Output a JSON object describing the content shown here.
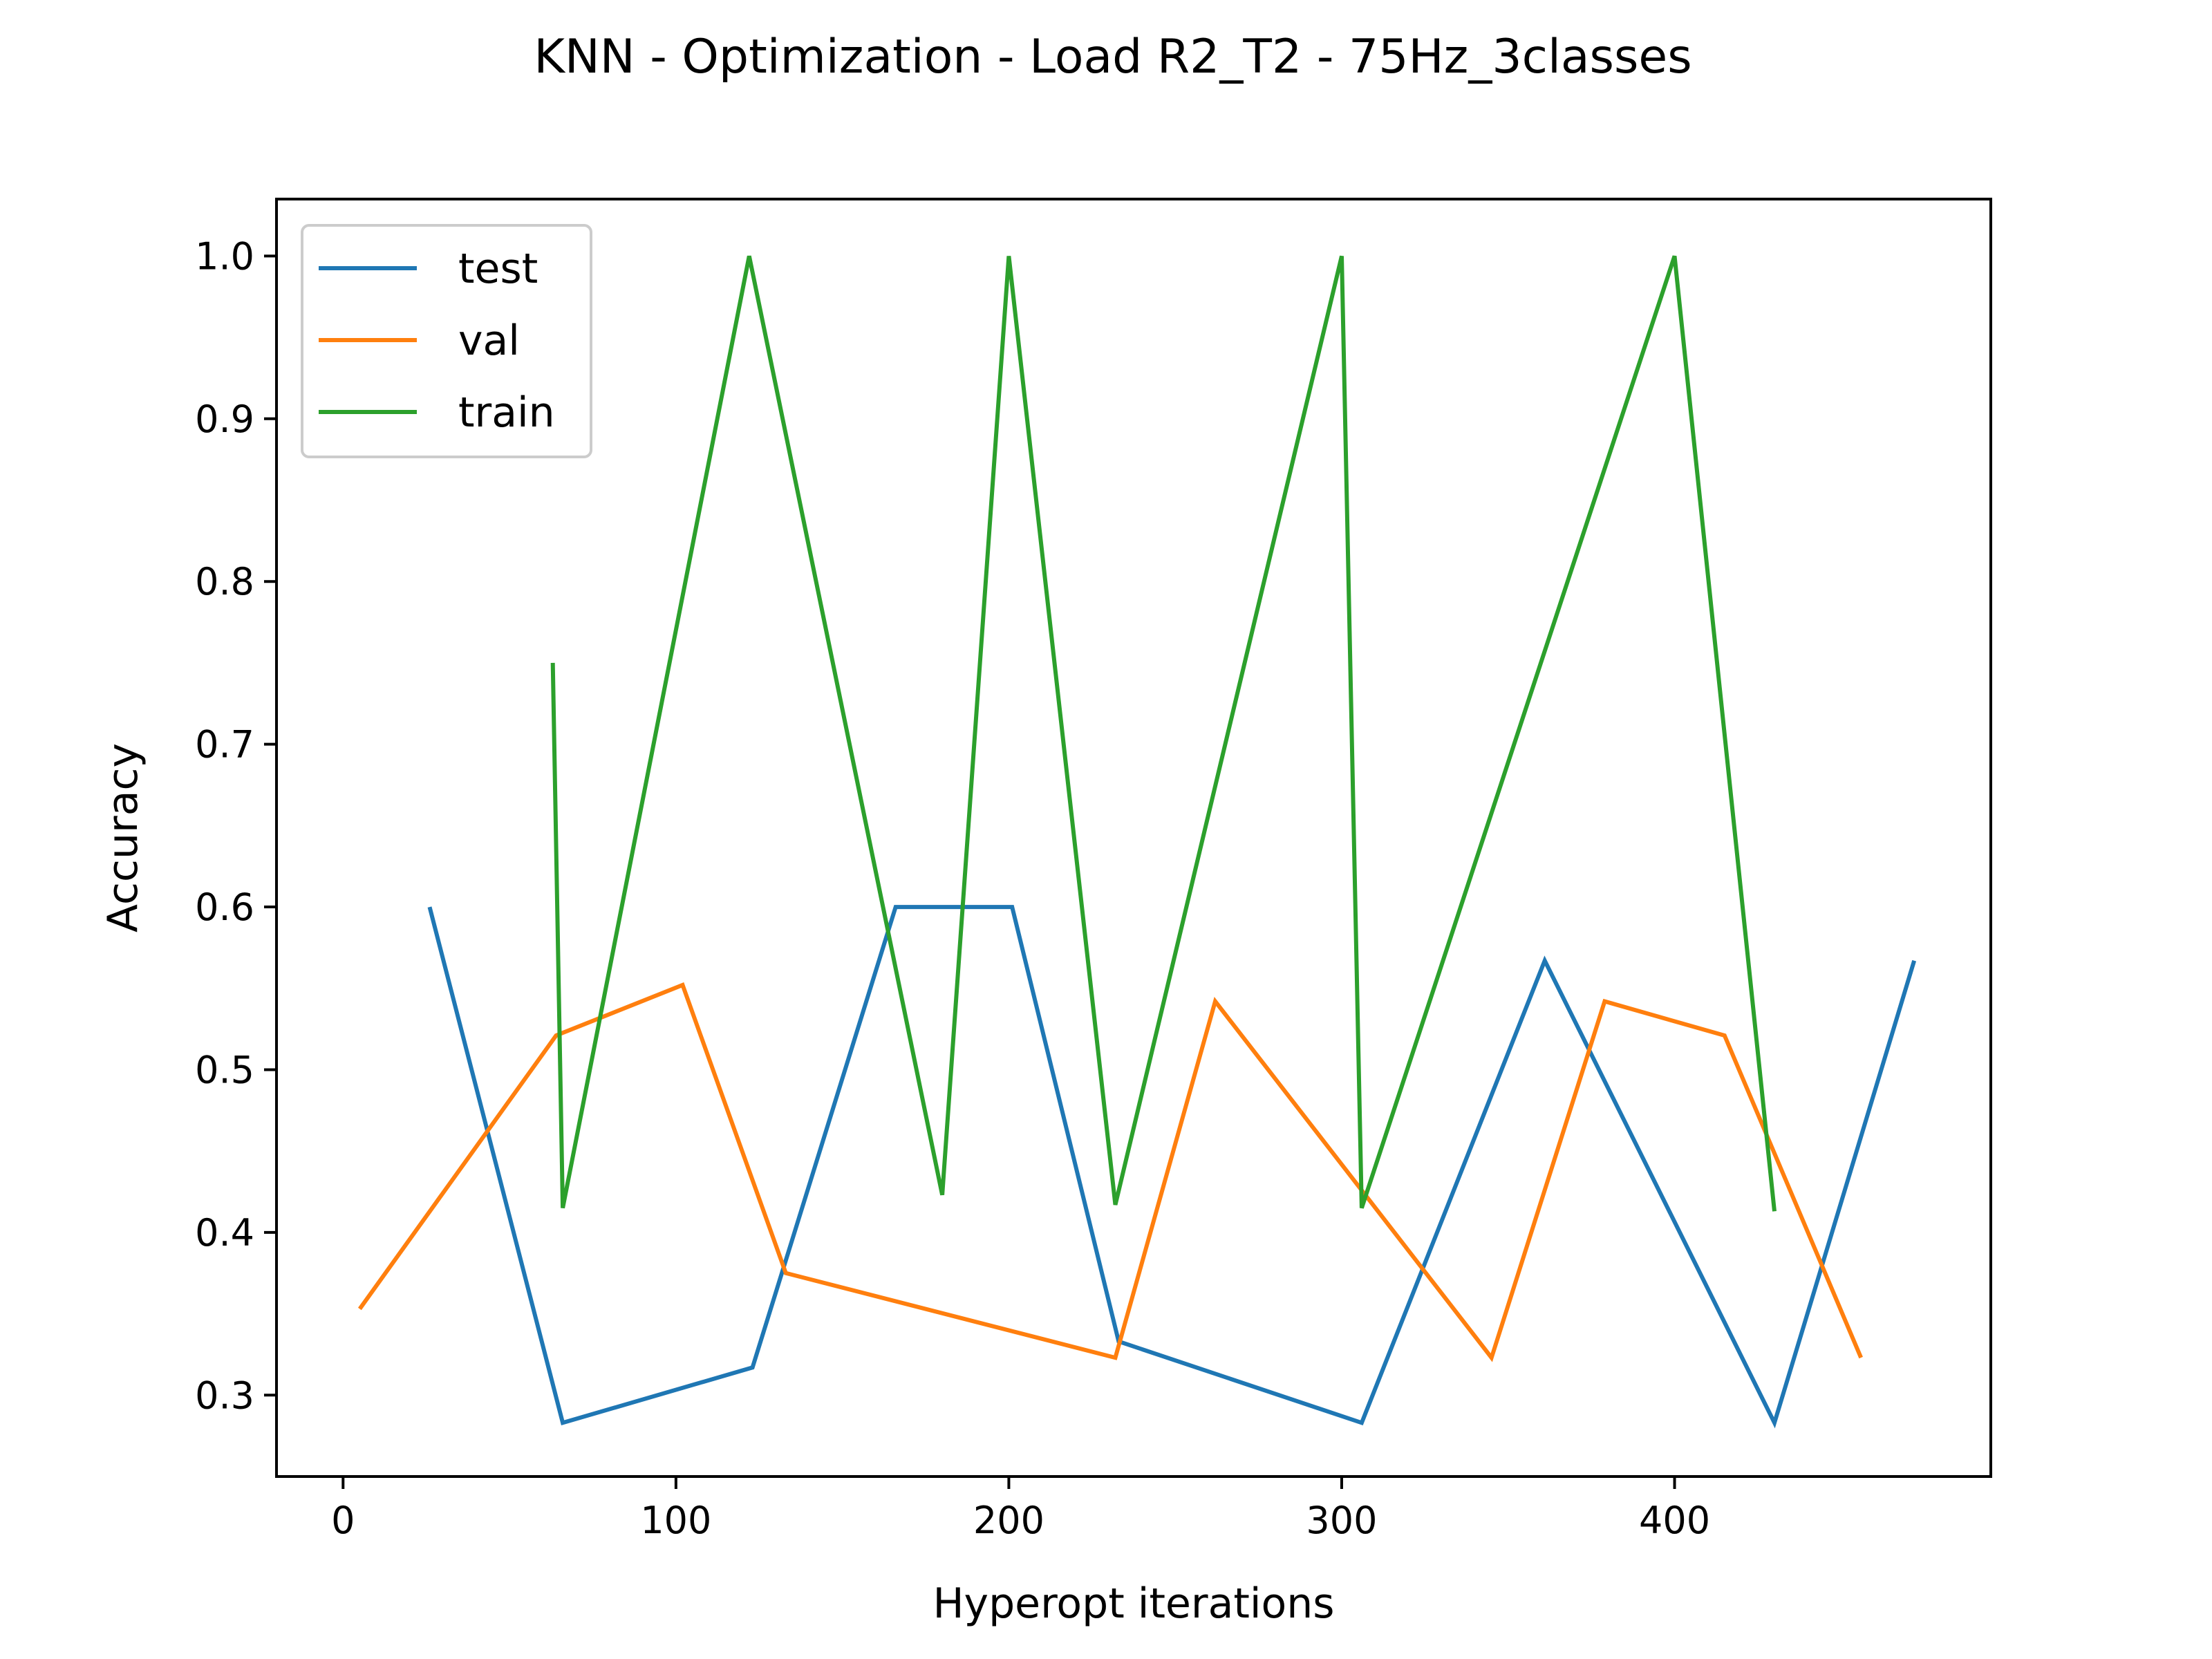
{
  "chart_data": {
    "type": "line",
    "title": "KNN - Optimization - Load R2_T2 - 75Hz_3classes",
    "xlabel": "Hyperopt iterations",
    "ylabel": "Accuracy",
    "xlim": [
      -20,
      495
    ],
    "ylim": [
      0.25,
      1.035
    ],
    "xticks": [
      0,
      100,
      200,
      300,
      400
    ],
    "yticks": [
      0.3,
      0.4,
      0.5,
      0.6,
      0.7,
      0.8,
      0.9,
      1.0
    ],
    "xtick_labels": [
      "0",
      "100",
      "200",
      "300",
      "400"
    ],
    "ytick_labels": [
      "0.3",
      "0.4",
      "0.5",
      "0.6",
      "0.7",
      "0.8",
      "0.9",
      "1.0"
    ],
    "grid": false,
    "legend_position": "upper-left",
    "series": [
      {
        "name": "test",
        "color": "#1f77b4",
        "x": [
          26,
          66,
          123,
          166,
          201,
          233,
          306,
          361,
          430,
          472
        ],
        "y": [
          0.6,
          0.283,
          0.317,
          0.6,
          0.6,
          0.333,
          0.283,
          0.567,
          0.283,
          0.567
        ]
      },
      {
        "name": "val",
        "color": "#ff7f0e",
        "x": [
          5,
          64,
          102,
          133,
          232,
          262,
          345,
          379,
          415,
          456
        ],
        "y": [
          0.353,
          0.521,
          0.552,
          0.375,
          0.323,
          0.542,
          0.323,
          0.542,
          0.521,
          0.323
        ]
      },
      {
        "name": "train",
        "color": "#2ca02c",
        "x": [
          63,
          66,
          122,
          180,
          200,
          232,
          300,
          306,
          400,
          430
        ],
        "y": [
          0.75,
          0.415,
          1.0,
          0.423,
          1.0,
          0.417,
          1.0,
          0.415,
          1.0,
          0.413
        ]
      }
    ]
  }
}
